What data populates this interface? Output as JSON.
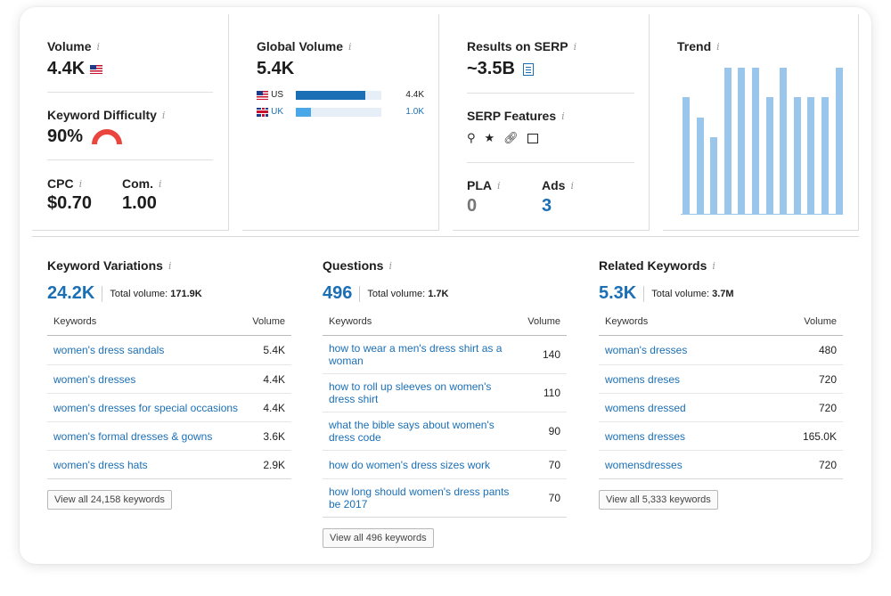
{
  "volume": {
    "label": "Volume",
    "value": "4.4K"
  },
  "keyword_difficulty": {
    "label": "Keyword Difficulty",
    "value": "90%",
    "level": 0.9,
    "color": "#e8463e"
  },
  "cpc": {
    "label": "CPC",
    "value": "$0.70"
  },
  "com": {
    "label": "Com.",
    "value": "1.00"
  },
  "global_volume": {
    "label": "Global Volume",
    "value": "5.4K",
    "rows": [
      {
        "code": "US",
        "value": "4.4K",
        "share": 0.81,
        "color": "#1b6fb5"
      },
      {
        "code": "UK",
        "value": "1.0K",
        "share": 0.18,
        "color": "#4aa8e8"
      }
    ]
  },
  "results_on_serp": {
    "label": "Results on SERP",
    "value": "~3.5B"
  },
  "serp_features": {
    "label": "SERP Features",
    "icons": [
      "location-pin-icon",
      "star-icon",
      "link-icon",
      "image-icon"
    ]
  },
  "pla": {
    "label": "PLA",
    "value": "0"
  },
  "ads": {
    "label": "Ads",
    "value": "3"
  },
  "trend": {
    "label": "Trend",
    "values": [
      0.8,
      0.66,
      0.53,
      1.0,
      1.0,
      1.0,
      0.8,
      1.0,
      0.8,
      0.8,
      0.8,
      1.0
    ],
    "color": "#9ac6ec"
  },
  "keyword_variations": {
    "title": "Keyword Variations",
    "count": "24.2K",
    "total_label": "Total volume:",
    "total_value": "171.9K",
    "col_keywords": "Keywords",
    "col_volume": "Volume",
    "rows": [
      {
        "keyword": "women's dress sandals",
        "volume": "5.4K"
      },
      {
        "keyword": "women's dresses",
        "volume": "4.4K"
      },
      {
        "keyword": "women's dresses for special occasions",
        "volume": "4.4K"
      },
      {
        "keyword": "women's formal dresses & gowns",
        "volume": "3.6K"
      },
      {
        "keyword": "women's dress hats",
        "volume": "2.9K"
      }
    ],
    "view_all": "View all 24,158 keywords"
  },
  "questions": {
    "title": "Questions",
    "count": "496",
    "total_label": "Total volume:",
    "total_value": "1.7K",
    "col_keywords": "Keywords",
    "col_volume": "Volume",
    "rows": [
      {
        "keyword": "how to wear a men's dress shirt as a woman",
        "volume": "140"
      },
      {
        "keyword": "how to roll up sleeves on women's dress shirt",
        "volume": "110"
      },
      {
        "keyword": "what the bible says about women's dress code",
        "volume": "90"
      },
      {
        "keyword": "how do women's dress sizes work",
        "volume": "70"
      },
      {
        "keyword": "how long should women's dress pants be 2017",
        "volume": "70"
      }
    ],
    "view_all": "View all 496 keywords"
  },
  "related_keywords": {
    "title": "Related Keywords",
    "count": "5.3K",
    "total_label": "Total volume:",
    "total_value": "3.7M",
    "col_keywords": "Keywords",
    "col_volume": "Volume",
    "rows": [
      {
        "keyword": "woman's dresses",
        "volume": "480"
      },
      {
        "keyword": "womens dreses",
        "volume": "720"
      },
      {
        "keyword": "womens dressed",
        "volume": "720"
      },
      {
        "keyword": "womens dresses",
        "volume": "165.0K"
      },
      {
        "keyword": "womensdresses",
        "volume": "720"
      }
    ],
    "view_all": "View all 5,333 keywords"
  }
}
